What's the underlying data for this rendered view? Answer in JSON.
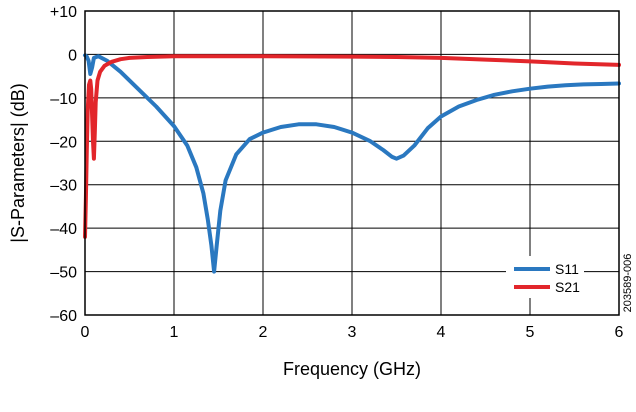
{
  "chart_data": {
    "type": "line",
    "xlabel": "Frequency (GHz)",
    "ylabel": "|S-Parameters| (dB)",
    "xlim": [
      0,
      6
    ],
    "ylim": [
      -60,
      10
    ],
    "x_ticks": [
      "0",
      "1",
      "2",
      "3",
      "4",
      "5",
      "6"
    ],
    "y_ticks": [
      "+10",
      "0",
      "–10",
      "–20",
      "–30",
      "–40",
      "–50",
      "–60"
    ],
    "grid": true,
    "legend_position": "bottom-right",
    "series": [
      {
        "name": "S11",
        "color": "#2a78c0",
        "points": [
          [
            0.0,
            -0.2
          ],
          [
            0.02,
            -0.5
          ],
          [
            0.04,
            -1.5
          ],
          [
            0.06,
            -4.5
          ],
          [
            0.08,
            -3.0
          ],
          [
            0.1,
            -0.8
          ],
          [
            0.15,
            -0.4
          ],
          [
            0.25,
            -1.5
          ],
          [
            0.4,
            -4.0
          ],
          [
            0.6,
            -8.0
          ],
          [
            0.8,
            -12.0
          ],
          [
            1.0,
            -16.5
          ],
          [
            1.15,
            -21.0
          ],
          [
            1.25,
            -26.0
          ],
          [
            1.33,
            -32.0
          ],
          [
            1.38,
            -38.0
          ],
          [
            1.42,
            -44.0
          ],
          [
            1.45,
            -50.0
          ],
          [
            1.48,
            -44.0
          ],
          [
            1.52,
            -36.0
          ],
          [
            1.58,
            -29.0
          ],
          [
            1.7,
            -23.0
          ],
          [
            1.85,
            -19.5
          ],
          [
            2.0,
            -18.0
          ],
          [
            2.2,
            -16.7
          ],
          [
            2.4,
            -16.1
          ],
          [
            2.6,
            -16.1
          ],
          [
            2.8,
            -16.7
          ],
          [
            3.0,
            -18.0
          ],
          [
            3.2,
            -19.9
          ],
          [
            3.35,
            -22.0
          ],
          [
            3.45,
            -23.6
          ],
          [
            3.5,
            -24.0
          ],
          [
            3.58,
            -23.3
          ],
          [
            3.7,
            -21.0
          ],
          [
            3.85,
            -17.0
          ],
          [
            4.0,
            -14.3
          ],
          [
            4.2,
            -12.0
          ],
          [
            4.4,
            -10.5
          ],
          [
            4.6,
            -9.3
          ],
          [
            4.8,
            -8.5
          ],
          [
            5.0,
            -7.9
          ],
          [
            5.2,
            -7.4
          ],
          [
            5.4,
            -7.1
          ],
          [
            5.6,
            -6.9
          ],
          [
            5.8,
            -6.8
          ],
          [
            6.0,
            -6.7
          ]
        ]
      },
      {
        "name": "S21",
        "color": "#e2262b",
        "points": [
          [
            0.0,
            -42.0
          ],
          [
            0.01,
            -33.0
          ],
          [
            0.02,
            -22.0
          ],
          [
            0.03,
            -13.0
          ],
          [
            0.045,
            -7.0
          ],
          [
            0.06,
            -6.0
          ],
          [
            0.07,
            -8.0
          ],
          [
            0.08,
            -14.0
          ],
          [
            0.09,
            -20.0
          ],
          [
            0.1,
            -24.0
          ],
          [
            0.11,
            -18.0
          ],
          [
            0.12,
            -11.0
          ],
          [
            0.14,
            -6.0
          ],
          [
            0.17,
            -4.0
          ],
          [
            0.22,
            -2.6
          ],
          [
            0.3,
            -1.7
          ],
          [
            0.4,
            -1.1
          ],
          [
            0.5,
            -0.8
          ],
          [
            0.7,
            -0.6
          ],
          [
            1.0,
            -0.4
          ],
          [
            1.5,
            -0.4
          ],
          [
            2.0,
            -0.4
          ],
          [
            3.0,
            -0.5
          ],
          [
            3.5,
            -0.6
          ],
          [
            4.0,
            -0.8
          ],
          [
            4.5,
            -1.2
          ],
          [
            5.0,
            -1.6
          ],
          [
            5.5,
            -2.1
          ],
          [
            6.0,
            -2.4
          ]
        ]
      }
    ]
  },
  "side_note": "203589-006"
}
